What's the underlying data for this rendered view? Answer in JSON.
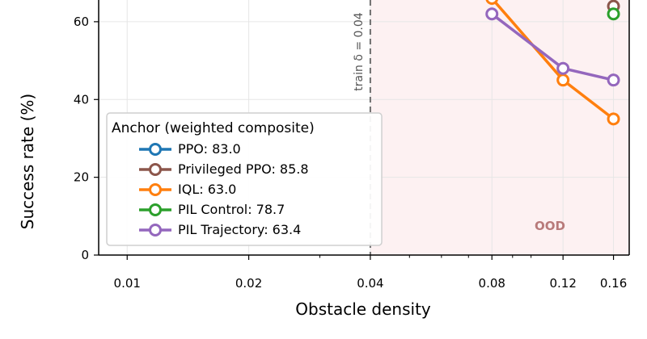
{
  "chart_data": {
    "type": "line",
    "xlabel": "Obstacle density",
    "ylabel": "Success rate (%)",
    "x_scale": "log",
    "xlim": [
      0.0085,
      0.175
    ],
    "ylim": [
      0,
      66
    ],
    "x_ticks": [
      0.01,
      0.02,
      0.04,
      0.08,
      0.12,
      0.16
    ],
    "x_tick_labels": [
      "0.01",
      "0.02",
      "0.04",
      "0.08",
      "0.12",
      "0.16"
    ],
    "y_ticks": [
      0,
      20,
      40,
      60
    ],
    "y_tick_labels": [
      "0",
      "20",
      "40",
      "60"
    ],
    "grid": true,
    "train_line": {
      "x": 0.04,
      "label": "train δ = 0.04"
    },
    "ood_region": {
      "x_start": 0.04,
      "label": "OOD",
      "color": "#fdf1f2"
    },
    "legend": {
      "title": "Anchor (weighted composite)",
      "placement": "lower-left"
    },
    "series": [
      {
        "name": "PPO: 83.0",
        "color": "#1f77b4",
        "x": [],
        "y": []
      },
      {
        "name": "Privileged PPO: 85.8",
        "color": "#8c564b",
        "x": [
          0.16
        ],
        "y": [
          64
        ]
      },
      {
        "name": "IQL: 63.0",
        "color": "#ff7f0e",
        "x": [
          0.08,
          0.12,
          0.16
        ],
        "y": [
          66,
          45,
          35
        ]
      },
      {
        "name": "PIL Control: 78.7",
        "color": "#2ca02c",
        "x": [
          0.16
        ],
        "y": [
          62
        ]
      },
      {
        "name": "PIL Trajectory: 63.4",
        "color": "#9467bd",
        "x": [
          0.08,
          0.12,
          0.16
        ],
        "y": [
          62,
          48,
          45
        ]
      }
    ]
  }
}
